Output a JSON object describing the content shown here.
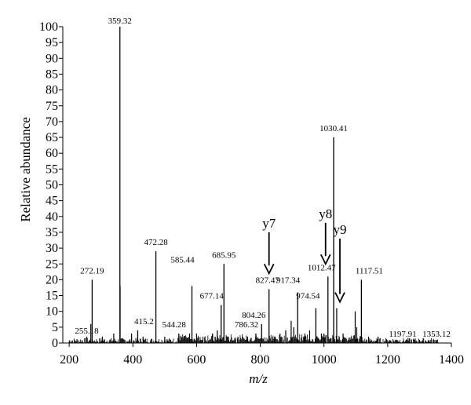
{
  "chart_data": {
    "type": "bar",
    "xlabel": "m/z",
    "ylabel": "Relative abundance",
    "xlim": [
      180,
      1400
    ],
    "ylim": [
      0,
      100
    ],
    "x_ticks": [
      200,
      400,
      600,
      800,
      1000,
      1200,
      1400
    ],
    "y_ticks": [
      0,
      5,
      10,
      15,
      20,
      25,
      30,
      35,
      40,
      45,
      50,
      55,
      60,
      65,
      70,
      75,
      80,
      85,
      90,
      95,
      100
    ],
    "peaks": [
      {
        "mz": 255.18,
        "intensity": 2,
        "label": "255.18"
      },
      {
        "mz": 272.19,
        "intensity": 20,
        "label": "272.19"
      },
      {
        "mz": 359.32,
        "intensity": 100,
        "label": "359.32"
      },
      {
        "mz": 415.2,
        "intensity": 4,
        "label": "415.2"
      },
      {
        "mz": 472.28,
        "intensity": 29,
        "label": "472.28"
      },
      {
        "mz": 544.28,
        "intensity": 3,
        "label": "544.28"
      },
      {
        "mz": 585.44,
        "intensity": 18,
        "label": "585.44"
      },
      {
        "mz": 677.14,
        "intensity": 12,
        "label": "677.14"
      },
      {
        "mz": 685.95,
        "intensity": 25,
        "label": "685.95"
      },
      {
        "mz": 786.32,
        "intensity": 3,
        "label": "786.32"
      },
      {
        "mz": 804.26,
        "intensity": 6,
        "label": "804.26"
      },
      {
        "mz": 827.47,
        "intensity": 17,
        "label": "827.47"
      },
      {
        "mz": 917.34,
        "intensity": 16,
        "label": "917.34"
      },
      {
        "mz": 974.54,
        "intensity": 11,
        "label": "974.54"
      },
      {
        "mz": 1012.47,
        "intensity": 21,
        "label": "1012.47"
      },
      {
        "mz": 1030.41,
        "intensity": 65,
        "label": "1030.41"
      },
      {
        "mz": 1117.51,
        "intensity": 20,
        "label": "1117.51"
      },
      {
        "mz": 1197.91,
        "intensity": 1,
        "label": "1197.91"
      },
      {
        "mz": 1353.12,
        "intensity": 1,
        "label": "1353.12"
      }
    ],
    "minor_peaks": [
      {
        "mz": 268,
        "intensity": 6
      },
      {
        "mz": 304,
        "intensity": 2
      },
      {
        "mz": 340,
        "intensity": 3
      },
      {
        "mz": 360,
        "intensity": 18
      },
      {
        "mz": 396,
        "intensity": 3
      },
      {
        "mz": 432,
        "intensity": 2
      },
      {
        "mz": 500,
        "intensity": 2
      },
      {
        "mz": 560,
        "intensity": 2
      },
      {
        "mz": 578,
        "intensity": 3
      },
      {
        "mz": 600,
        "intensity": 3
      },
      {
        "mz": 620,
        "intensity": 2
      },
      {
        "mz": 650,
        "intensity": 3
      },
      {
        "mz": 665,
        "intensity": 4
      },
      {
        "mz": 700,
        "intensity": 2
      },
      {
        "mz": 730,
        "intensity": 2
      },
      {
        "mz": 760,
        "intensity": 2
      },
      {
        "mz": 845,
        "intensity": 2
      },
      {
        "mz": 862,
        "intensity": 3
      },
      {
        "mz": 880,
        "intensity": 4
      },
      {
        "mz": 897,
        "intensity": 7
      },
      {
        "mz": 905,
        "intensity": 5
      },
      {
        "mz": 940,
        "intensity": 3
      },
      {
        "mz": 955,
        "intensity": 4
      },
      {
        "mz": 992,
        "intensity": 3
      },
      {
        "mz": 1000,
        "intensity": 3
      },
      {
        "mz": 1040,
        "intensity": 11
      },
      {
        "mz": 1060,
        "intensity": 3
      },
      {
        "mz": 1098,
        "intensity": 10
      },
      {
        "mz": 1103,
        "intensity": 5
      },
      {
        "mz": 1140,
        "intensity": 2
      },
      {
        "mz": 1170,
        "intensity": 2
      },
      {
        "mz": 1230,
        "intensity": 1
      },
      {
        "mz": 1260,
        "intensity": 1
      },
      {
        "mz": 1300,
        "intensity": 1
      }
    ],
    "annotations": [
      {
        "label": "y7",
        "mz": 827.47,
        "arrow_from": 35,
        "arrow_to": 22
      },
      {
        "label": "y8",
        "mz": 1005,
        "arrow_from": 38,
        "arrow_to": 25
      },
      {
        "label": "y9",
        "mz": 1050,
        "arrow_from": 33,
        "arrow_to": 13
      }
    ]
  }
}
